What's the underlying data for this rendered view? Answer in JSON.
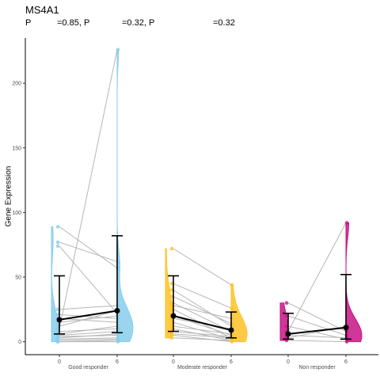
{
  "chart_data": {
    "type": "scatter",
    "title": "MS4A1",
    "subtitle": [
      "P",
      "=0.85, P",
      "=0.32, P",
      "=0.32"
    ],
    "ylabel": "Gene Expression",
    "xlabel": "",
    "ylim": [
      -10,
      235
    ],
    "yticks": [
      0,
      50,
      100,
      150,
      200
    ],
    "grid": false,
    "groups": [
      {
        "name": "Good responder",
        "color": "#87CEEB",
        "timepoints": [
          "0",
          "6"
        ],
        "mean": [
          17,
          24
        ],
        "ci": [
          [
            6,
            51
          ],
          [
            7,
            82
          ]
        ],
        "pairs": [
          [
            89,
            57
          ],
          [
            77,
            62
          ],
          [
            74,
            22
          ],
          [
            25,
            28
          ],
          [
            21,
            18
          ],
          [
            18,
            15
          ],
          [
            15,
            20
          ],
          [
            12,
            24
          ],
          [
            10,
            226
          ],
          [
            8,
            10
          ],
          [
            6,
            12
          ],
          [
            5,
            8
          ],
          [
            4,
            5
          ],
          [
            3,
            6
          ],
          [
            2,
            3
          ],
          [
            1,
            2
          ],
          [
            0,
            1
          ],
          [
            0,
            0
          ]
        ]
      },
      {
        "name": "Moderate responder",
        "color": "#FFC125",
        "timepoints": [
          "0",
          "6"
        ],
        "mean": [
          20,
          9
        ],
        "ci": [
          [
            8,
            51
          ],
          [
            3,
            23
          ]
        ],
        "pairs": [
          [
            72,
            44
          ],
          [
            45,
            26
          ],
          [
            40,
            12
          ],
          [
            35,
            14
          ],
          [
            30,
            8
          ],
          [
            28,
            18
          ],
          [
            25,
            3
          ],
          [
            20,
            5
          ],
          [
            18,
            10
          ],
          [
            15,
            2
          ],
          [
            12,
            6
          ],
          [
            10,
            1
          ],
          [
            8,
            4
          ],
          [
            6,
            3
          ],
          [
            5,
            0
          ],
          [
            3,
            1
          ]
        ]
      },
      {
        "name": "Non responder",
        "color": "#C71585",
        "timepoints": [
          "0",
          "6"
        ],
        "mean": [
          6,
          11
        ],
        "ci": [
          [
            2,
            22
          ],
          [
            2,
            52
          ]
        ],
        "pairs": [
          [
            30,
            8
          ],
          [
            20,
            5
          ],
          [
            12,
            2
          ],
          [
            8,
            92
          ],
          [
            5,
            3
          ],
          [
            3,
            12
          ],
          [
            1,
            0
          ]
        ]
      }
    ]
  }
}
